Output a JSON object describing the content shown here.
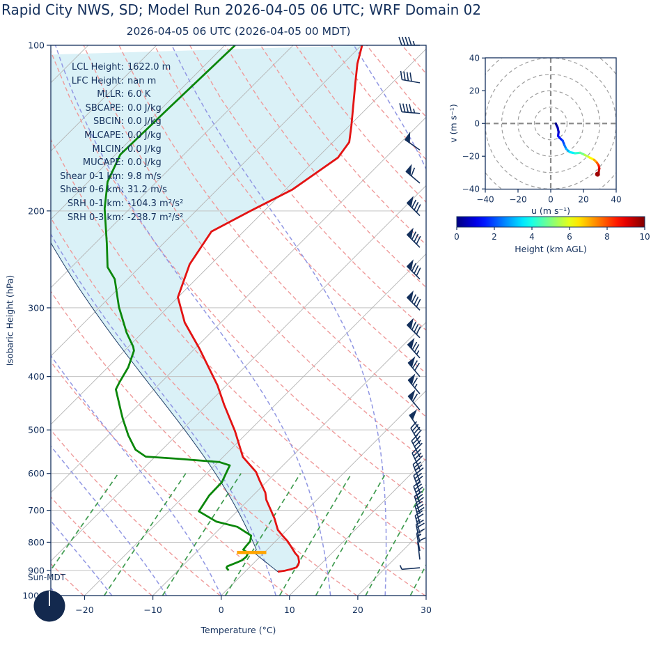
{
  "header": {
    "title": "Rapid City NWS, SD; Model Run 2026-04-05 06 UTC; WRF Domain 02",
    "subtitle": "2026-04-05 06 UTC  (2026-04-05 00 MDT)"
  },
  "stats": [
    {
      "label": "LCL Height:",
      "value": "1622.0 m"
    },
    {
      "label": "LFC Height:",
      "value": "nan m"
    },
    {
      "label": "MLLR:",
      "value": "6.0 K"
    },
    {
      "label": "SBCAPE:",
      "value": "0.0 J/kg"
    },
    {
      "label": "SBCIN:",
      "value": "0.0 J/kg"
    },
    {
      "label": "MLCAPE:",
      "value": "0.0 J/kg"
    },
    {
      "label": "MLCIN:",
      "value": "0.0 J/kg"
    },
    {
      "label": "MUCAPE:",
      "value": "0.0 J/kg"
    },
    {
      "label": "Shear 0-1 km:",
      "value": "9.8 m/s"
    },
    {
      "label": "Shear 0-6 km:",
      "value": "31.2 m/s"
    },
    {
      "label": "SRH 0-1 km:",
      "value": "-104.3 m²/s²"
    },
    {
      "label": "SRH 0-3 km:",
      "value": "-238.7 m²/s²"
    }
  ],
  "sun_label": "Sun-MDT",
  "colors": {
    "text_navy": "#14305c",
    "temperature": "#e31313",
    "dewpoint": "#0b870b",
    "parcel": "#23406b",
    "cin_shade": "#daf1f7",
    "isotherm": "#b4b4b4",
    "grid": "#c2c2c2",
    "dry_adiabat": "#ef9a9a",
    "moist_adiabat": "#9197e3",
    "mixing_ratio": "#3f9b4f",
    "barb": "#14305c",
    "lcl_marker": "#ffa500",
    "hodo_ring": "#9e9e9e",
    "hodo_cross": "#8a8a8a",
    "moon": "#13294e"
  },
  "chart_data": [
    {
      "type": "line",
      "name": "skew_t_log_p",
      "xlabel": "Temperature (°C)",
      "ylabel": "Isobaric Height (hPa)",
      "x_ticks": [
        -20,
        -10,
        0,
        10,
        20,
        30
      ],
      "p_ticks": [
        100,
        200,
        300,
        400,
        500,
        600,
        700,
        800,
        900,
        1000
      ],
      "xlim": [
        -24.9,
        30
      ],
      "plim": [
        100,
        1000
      ],
      "skew_deg": 45,
      "grid": true,
      "series": [
        {
          "name": "temperature",
          "units": "degC vs hPa",
          "points": [
            [
              905,
              4.8
            ],
            [
              901,
              5.7
            ],
            [
              896,
              6.3
            ],
            [
              889,
              6.9
            ],
            [
              880,
              6.8
            ],
            [
              869,
              6.5
            ],
            [
              850,
              5.6
            ],
            [
              837,
              4.6
            ],
            [
              818,
              3.3
            ],
            [
              797,
              1.8
            ],
            [
              778,
              0.2
            ],
            [
              760,
              -1.3
            ],
            [
              724,
              -3.5
            ],
            [
              693,
              -5.7
            ],
            [
              670,
              -7.4
            ],
            [
              650,
              -8.6
            ],
            [
              618,
              -11.2
            ],
            [
              596,
              -13.0
            ],
            [
              560,
              -17.1
            ],
            [
              503,
              -22.0
            ],
            [
              450,
              -27.5
            ],
            [
              415,
              -31.3
            ],
            [
              356,
              -39.3
            ],
            [
              319,
              -45.3
            ],
            [
              287,
              -50.0
            ],
            [
              250,
              -53.1
            ],
            [
              218,
              -54.7
            ],
            [
              200,
              -52.0
            ],
            [
              183,
              -49.0
            ],
            [
              160,
              -47.0
            ],
            [
              150,
              -47.6
            ],
            [
              140,
              -49.7
            ],
            [
              117,
              -55.4
            ],
            [
              108,
              -57.9
            ],
            [
              100,
              -59.9
            ]
          ]
        },
        {
          "name": "dewpoint",
          "units": "degC vs hPa",
          "points": [
            [
              900,
              -2.6
            ],
            [
              890,
              -3.3
            ],
            [
              885,
              -3.4
            ],
            [
              870,
              -2.5
            ],
            [
              862,
              -2.1
            ],
            [
              850,
              -2.0
            ],
            [
              837,
              -2.3
            ],
            [
              825,
              -3.5
            ],
            [
              813,
              -3.6
            ],
            [
              797,
              -3.7
            ],
            [
              778,
              -4.4
            ],
            [
              750,
              -7.7
            ],
            [
              734,
              -11.5
            ],
            [
              703,
              -15.6
            ],
            [
              658,
              -16.4
            ],
            [
              622,
              -16.5
            ],
            [
              580,
              -17.8
            ],
            [
              572,
              -19.8
            ],
            [
              564,
              -26.5
            ],
            [
              559,
              -31.4
            ],
            [
              543,
              -33.9
            ],
            [
              512,
              -37.0
            ],
            [
              477,
              -40.3
            ],
            [
              463,
              -41.6
            ],
            [
              422,
              -45.6
            ],
            [
              410,
              -46.1
            ],
            [
              385,
              -47.0
            ],
            [
              359,
              -48.6
            ],
            [
              353,
              -49.3
            ],
            [
              333,
              -52.3
            ],
            [
              299,
              -57.2
            ],
            [
              266,
              -61.9
            ],
            [
              253,
              -64.7
            ],
            [
              229,
              -68.3
            ],
            [
              198,
              -73.7
            ],
            [
              177,
              -77.2
            ],
            [
              158,
              -79.3
            ],
            [
              130,
              -79.0
            ],
            [
              100,
              -78.5
            ]
          ]
        }
      ],
      "parcel": {
        "surface_p": 905,
        "surface_t": 4.8,
        "lcl_p": 835
      },
      "lcl_marker": {
        "p": 835,
        "t_from": -4.0,
        "t_to": 0.3
      },
      "wind_barbs": [
        [
          100,
          270,
          45
        ],
        [
          117,
          280,
          40
        ],
        [
          133,
          275,
          45
        ],
        [
          155,
          305,
          50
        ],
        [
          178,
          310,
          60
        ],
        [
          204,
          315,
          80
        ],
        [
          233,
          315,
          80
        ],
        [
          266,
          315,
          80
        ],
        [
          303,
          315,
          80
        ],
        [
          340,
          315,
          80
        ],
        [
          370,
          318,
          75
        ],
        [
          400,
          320,
          70
        ],
        [
          430,
          320,
          65
        ],
        [
          460,
          320,
          60
        ],
        [
          500,
          325,
          50
        ],
        [
          530,
          330,
          45
        ],
        [
          560,
          333,
          45
        ],
        [
          590,
          335,
          40
        ],
        [
          620,
          338,
          40
        ],
        [
          650,
          340,
          35
        ],
        [
          680,
          340,
          35
        ],
        [
          710,
          343,
          30
        ],
        [
          740,
          345,
          30
        ],
        [
          770,
          345,
          25
        ],
        [
          800,
          348,
          20
        ],
        [
          830,
          350,
          15
        ],
        [
          860,
          353,
          10
        ],
        [
          890,
          265,
          6
        ]
      ],
      "guides": {
        "isotherms_c": {
          "from": -120,
          "to": 40,
          "step": 10
        },
        "dry_adiabats_k": {
          "from": 233,
          "to": 533,
          "step": 10
        },
        "moist_adiabats_c": {
          "from": -64,
          "to": 40,
          "step": 8
        },
        "mixing_ratios_gkg": [
          0.4,
          1,
          2,
          4,
          7,
          10,
          16,
          24,
          32
        ],
        "mixing_top_hpa": 600
      }
    },
    {
      "type": "line",
      "name": "hodograph",
      "xlabel": "u (m s⁻¹)",
      "ylabel": "v (m s⁻¹)",
      "ticks": [
        -40,
        -20,
        0,
        20,
        40
      ],
      "xlim": [
        -40,
        40
      ],
      "ylim": [
        -40,
        40
      ],
      "rings": [
        10,
        20,
        30,
        40,
        50
      ],
      "trace_u_v_km": [
        [
          3.1,
          0.0,
          0.0
        ],
        [
          3.6,
          -1.2,
          0.2
        ],
        [
          4.2,
          -2.4,
          0.4
        ],
        [
          4.8,
          -5.2,
          0.7
        ],
        [
          4.5,
          -7.6,
          1.0
        ],
        [
          5.2,
          -8.6,
          1.3
        ],
        [
          7.3,
          -10.5,
          1.7
        ],
        [
          8.4,
          -13.3,
          2.2
        ],
        [
          9.5,
          -15.6,
          2.7
        ],
        [
          11.6,
          -17.5,
          3.3
        ],
        [
          14.9,
          -18.2,
          3.9
        ],
        [
          18.0,
          -17.9,
          4.5
        ],
        [
          20.8,
          -19.2,
          5.2
        ],
        [
          23.6,
          -20.7,
          5.9
        ],
        [
          26.5,
          -22.2,
          6.7
        ],
        [
          28.2,
          -23.9,
          7.5
        ],
        [
          29.3,
          -25.6,
          8.2
        ],
        [
          29.7,
          -27.5,
          8.9
        ],
        [
          29.3,
          -29.8,
          9.5
        ],
        [
          28.6,
          -31.0,
          10.0
        ]
      ]
    },
    {
      "type": "colorbar",
      "name": "height_colorbar",
      "label": "Height (km AGL)",
      "ticks": [
        0,
        2,
        4,
        6,
        8,
        10
      ],
      "range": [
        0,
        10
      ],
      "cmap": "jet"
    }
  ]
}
